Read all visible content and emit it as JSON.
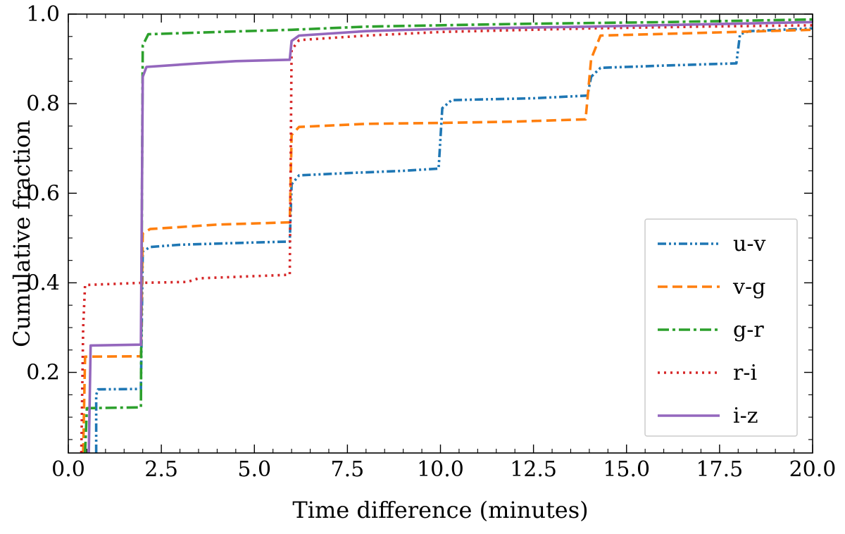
{
  "chart_data": {
    "type": "line",
    "title": "",
    "xlabel": "Time difference (minutes)",
    "ylabel": "Cumulative fraction",
    "xlim": [
      0,
      20
    ],
    "ylim": [
      0.02,
      1.0
    ],
    "xticks": [
      0,
      2.5,
      5,
      7.5,
      10,
      12.5,
      15,
      17.5,
      20
    ],
    "xtick_labels": [
      "0.0",
      "2.5",
      "5.0",
      "7.5",
      "10.0",
      "12.5",
      "15.0",
      "17.5",
      "20.0"
    ],
    "yticks": [
      0.2,
      0.4,
      0.6,
      0.8,
      1.0
    ],
    "ytick_labels": [
      "0.2",
      "0.4",
      "0.6",
      "0.8",
      "1.0"
    ],
    "grid": false,
    "legend_position": "lower-right",
    "series": [
      {
        "name": "u-v",
        "color": "#1f77b4",
        "dash": "dashdotdot",
        "points": [
          [
            0.75,
            0.02
          ],
          [
            0.75,
            0.15
          ],
          [
            0.8,
            0.162
          ],
          [
            1.95,
            0.163
          ],
          [
            2.0,
            0.47
          ],
          [
            2.2,
            0.48
          ],
          [
            3.0,
            0.485
          ],
          [
            5.0,
            0.49
          ],
          [
            5.95,
            0.492
          ],
          [
            6.0,
            0.62
          ],
          [
            6.2,
            0.64
          ],
          [
            7.5,
            0.645
          ],
          [
            9.0,
            0.65
          ],
          [
            9.95,
            0.655
          ],
          [
            10.05,
            0.79
          ],
          [
            10.3,
            0.808
          ],
          [
            12.5,
            0.812
          ],
          [
            13.95,
            0.818
          ],
          [
            14.05,
            0.86
          ],
          [
            14.3,
            0.88
          ],
          [
            16.0,
            0.885
          ],
          [
            17.95,
            0.89
          ],
          [
            18.05,
            0.955
          ],
          [
            18.3,
            0.962
          ],
          [
            20.0,
            0.968
          ]
        ]
      },
      {
        "name": "v-g",
        "color": "#ff7f0e",
        "dash": "dashed",
        "points": [
          [
            0.4,
            0.02
          ],
          [
            0.45,
            0.235
          ],
          [
            1.95,
            0.236
          ],
          [
            2.0,
            0.51
          ],
          [
            2.2,
            0.52
          ],
          [
            4.0,
            0.53
          ],
          [
            5.95,
            0.535
          ],
          [
            6.0,
            0.73
          ],
          [
            6.2,
            0.748
          ],
          [
            8.0,
            0.755
          ],
          [
            10.0,
            0.757
          ],
          [
            12.0,
            0.76
          ],
          [
            13.9,
            0.765
          ],
          [
            14.05,
            0.9
          ],
          [
            14.3,
            0.952
          ],
          [
            17.0,
            0.958
          ],
          [
            20.0,
            0.965
          ]
        ]
      },
      {
        "name": "g-r",
        "color": "#2ca02c",
        "dash": "dashdot",
        "points": [
          [
            0.45,
            0.02
          ],
          [
            0.5,
            0.12
          ],
          [
            1.95,
            0.122
          ],
          [
            2.0,
            0.93
          ],
          [
            2.15,
            0.955
          ],
          [
            4.0,
            0.96
          ],
          [
            6.0,
            0.965
          ],
          [
            8.0,
            0.972
          ],
          [
            12.0,
            0.978
          ],
          [
            16.0,
            0.982
          ],
          [
            20.0,
            0.988
          ]
        ]
      },
      {
        "name": "r-i",
        "color": "#d62728",
        "dash": "dotted",
        "points": [
          [
            0.35,
            0.02
          ],
          [
            0.4,
            0.3
          ],
          [
            0.45,
            0.395
          ],
          [
            2.0,
            0.4
          ],
          [
            3.2,
            0.402
          ],
          [
            3.5,
            0.41
          ],
          [
            5.95,
            0.418
          ],
          [
            6.0,
            0.92
          ],
          [
            6.2,
            0.942
          ],
          [
            8.0,
            0.952
          ],
          [
            10.0,
            0.96
          ],
          [
            14.0,
            0.968
          ],
          [
            17.0,
            0.972
          ],
          [
            20.0,
            0.975
          ]
        ]
      },
      {
        "name": "i-z",
        "color": "#9467bd",
        "dash": "solid",
        "points": [
          [
            0.55,
            0.02
          ],
          [
            0.6,
            0.26
          ],
          [
            1.95,
            0.262
          ],
          [
            2.0,
            0.86
          ],
          [
            2.1,
            0.882
          ],
          [
            3.5,
            0.89
          ],
          [
            4.5,
            0.895
          ],
          [
            5.95,
            0.898
          ],
          [
            6.0,
            0.94
          ],
          [
            6.2,
            0.952
          ],
          [
            8.0,
            0.962
          ],
          [
            10.0,
            0.967
          ],
          [
            14.0,
            0.972
          ],
          [
            17.0,
            0.977
          ],
          [
            20.0,
            0.982
          ]
        ]
      }
    ]
  }
}
